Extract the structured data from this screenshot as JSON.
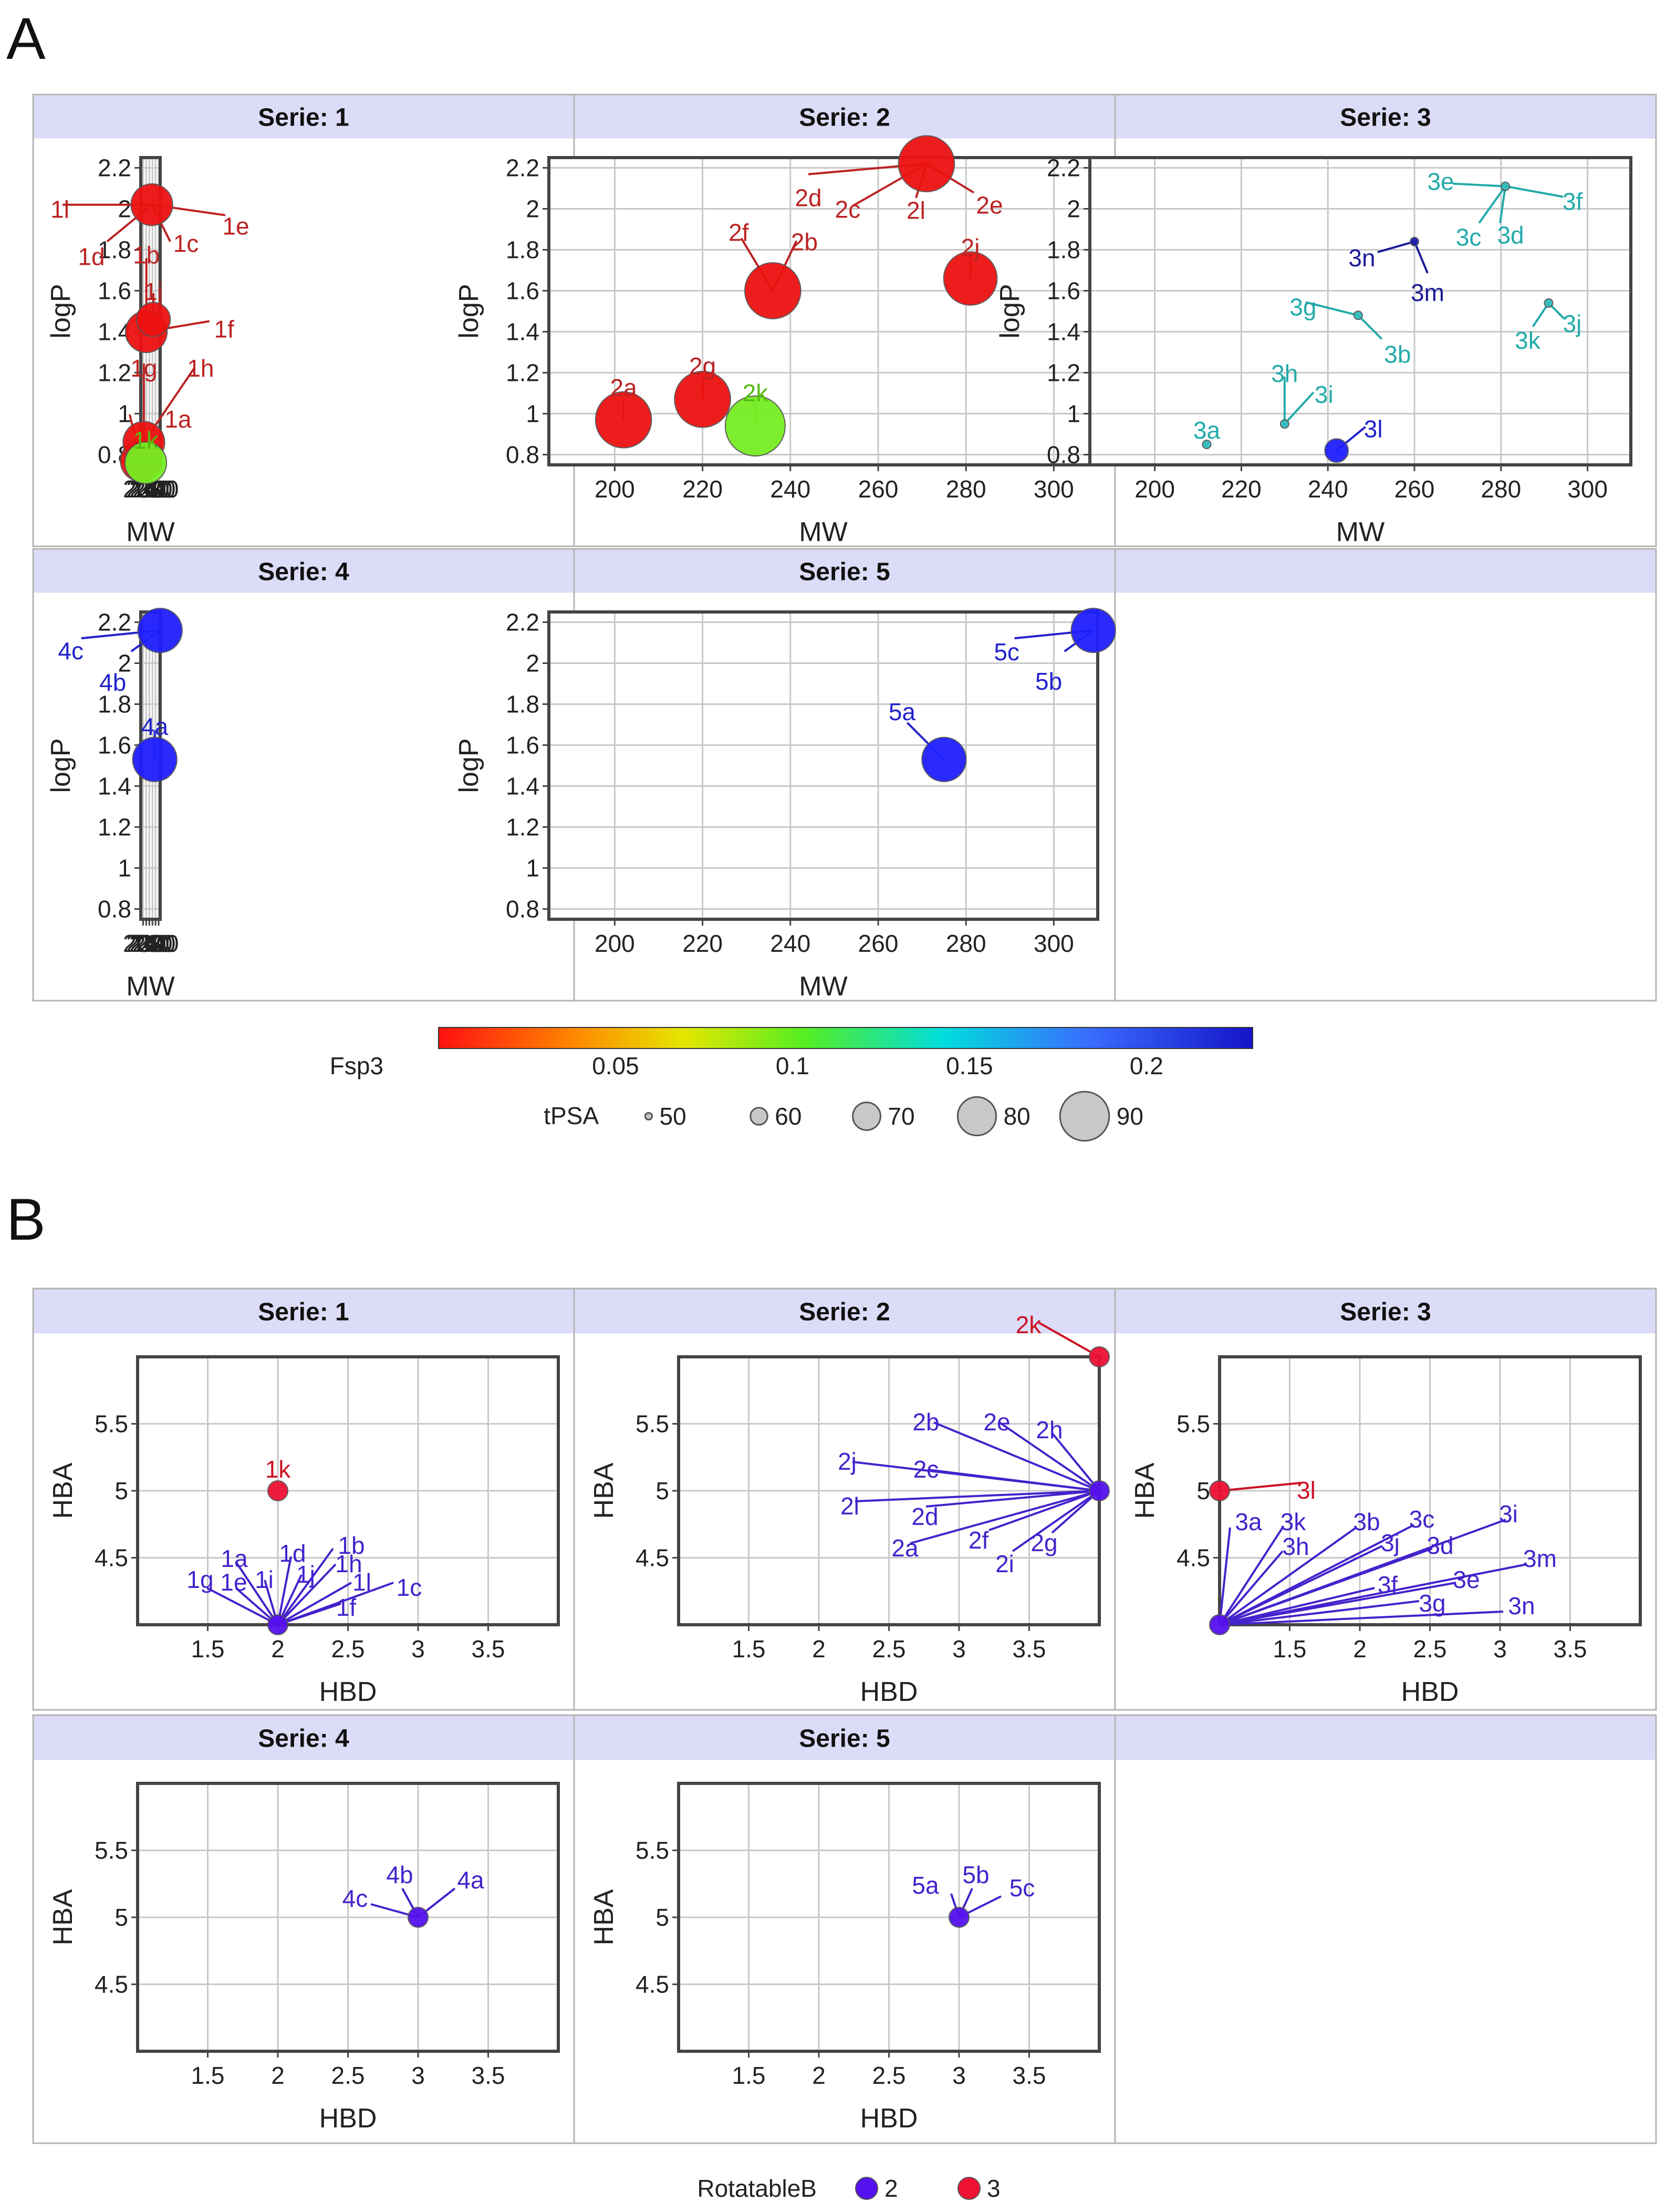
{
  "panel_letters": [
    "A",
    "B"
  ],
  "colors": {
    "strip_bg": "#dcdcf8",
    "frame": "#444444",
    "grid": "#c8c8c8",
    "panel_border": "#b4b4b4",
    "red": "#ee1111",
    "green": "#77ee22",
    "teal": "#33bbbb",
    "navy": "#1a1aaa",
    "blue": "#1f1fff",
    "violet": "#5511ee",
    "crimson": "#ee1133",
    "label_red": "#bb2222",
    "label_green": "#55bb11",
    "label_teal": "#22aaaa",
    "label_navy": "#1a1a99",
    "label_blue": "#2222cc",
    "label_violet": "#4422cc",
    "label_crimson": "#cc1122"
  },
  "chart_data": [
    {
      "id": "A",
      "type": "scatter",
      "xlabel": "MW",
      "ylabel": "logP",
      "xlim": [
        185,
        310
      ],
      "ylim": [
        0.75,
        2.25
      ],
      "xticks": [
        "200",
        "220",
        "240",
        "260",
        "280",
        "300"
      ],
      "yticks": [
        "0.8",
        "1",
        "1.2",
        "1.4",
        "1.6",
        "1.8",
        "2",
        "2.2"
      ],
      "legend": {
        "color_title": "Fsp3",
        "color_ticks": [
          "0.05",
          "0.1",
          "0.15",
          "0.2"
        ],
        "color_range": [
          0,
          0.23
        ],
        "size_title": "tPSA",
        "size_values": [
          "50",
          "60",
          "70",
          "80",
          "90"
        ]
      },
      "panels": [
        {
          "strip": "Serie: 1",
          "points": [
            {
              "label": "1a",
              "x": 188,
              "y": 0.77,
              "tPSA": 76,
              "color": "red"
            },
            {
              "label": "1g",
              "x": 205,
              "y": 0.86,
              "tPSA": 76,
              "color": "red"
            },
            {
              "label": "1h",
              "x": 205,
              "y": 0.86,
              "tPSA": 76,
              "color": "red"
            },
            {
              "label": "1k",
              "x": 217,
              "y": 0.76,
              "tPSA": 76,
              "color": "green"
            },
            {
              "label": "1b",
              "x": 221,
              "y": 1.4,
              "tPSA": 76,
              "color": "red"
            },
            {
              "label": "1f",
              "x": 221,
              "y": 1.4,
              "tPSA": 76,
              "color": "red"
            },
            {
              "label": "1l",
              "x": 256,
              "y": 2.02,
              "tPSA": 76,
              "color": "red"
            },
            {
              "label": "1c",
              "x": 256,
              "y": 2.02,
              "tPSA": 76,
              "color": "red"
            },
            {
              "label": "1d",
              "x": 256,
              "y": 2.02,
              "tPSA": 76,
              "color": "red"
            },
            {
              "label": "1e",
              "x": 256,
              "y": 2.02,
              "tPSA": 76,
              "color": "red"
            },
            {
              "label": "1j",
              "x": 266,
              "y": 1.46,
              "tPSA": 70,
              "color": "red"
            }
          ]
        },
        {
          "strip": "Serie: 2",
          "points": [
            {
              "label": "2a",
              "x": 202,
              "y": 0.97,
              "tPSA": 87,
              "color": "red"
            },
            {
              "label": "2g",
              "x": 220,
              "y": 1.07,
              "tPSA": 87,
              "color": "red"
            },
            {
              "label": "2k",
              "x": 232,
              "y": 0.94,
              "tPSA": 90,
              "color": "green"
            },
            {
              "label": "2f",
              "x": 236,
              "y": 1.6,
              "tPSA": 87,
              "color": "red"
            },
            {
              "label": "2b",
              "x": 236,
              "y": 1.6,
              "tPSA": 87,
              "color": "red"
            },
            {
              "label": "2d",
              "x": 271,
              "y": 2.22,
              "tPSA": 87,
              "color": "red"
            },
            {
              "label": "2c",
              "x": 271,
              "y": 2.22,
              "tPSA": 87,
              "color": "red"
            },
            {
              "label": "2l",
              "x": 271,
              "y": 2.22,
              "tPSA": 87,
              "color": "red"
            },
            {
              "label": "2e",
              "x": 271,
              "y": 2.22,
              "tPSA": 87,
              "color": "red"
            },
            {
              "label": "2j",
              "x": 281,
              "y": 1.66,
              "tPSA": 85,
              "color": "red"
            }
          ]
        },
        {
          "strip": "Serie: 3",
          "points": [
            {
              "label": "3a",
              "x": 212,
              "y": 0.85,
              "tPSA": 48,
              "color": "teal"
            },
            {
              "label": "3h",
              "x": 230,
              "y": 0.95,
              "tPSA": 48,
              "color": "teal"
            },
            {
              "label": "3i",
              "x": 230,
              "y": 0.95,
              "tPSA": 48,
              "color": "teal"
            },
            {
              "label": "3l",
              "x": 242,
              "y": 0.82,
              "tPSA": 62,
              "color": "blue"
            },
            {
              "label": "3g",
              "x": 247,
              "y": 1.48,
              "tPSA": 48,
              "color": "teal"
            },
            {
              "label": "3b",
              "x": 247,
              "y": 1.48,
              "tPSA": 48,
              "color": "teal"
            },
            {
              "label": "3n",
              "x": 260,
              "y": 1.84,
              "tPSA": 48,
              "color": "navy"
            },
            {
              "label": "3m",
              "x": 260,
              "y": 1.84,
              "tPSA": 48,
              "color": "navy"
            },
            {
              "label": "3e",
              "x": 281,
              "y": 2.11,
              "tPSA": 48,
              "color": "teal"
            },
            {
              "label": "3f",
              "x": 281,
              "y": 2.11,
              "tPSA": 48,
              "color": "teal"
            },
            {
              "label": "3c",
              "x": 281,
              "y": 2.11,
              "tPSA": 48,
              "color": "teal"
            },
            {
              "label": "3d",
              "x": 281,
              "y": 2.11,
              "tPSA": 48,
              "color": "teal"
            },
            {
              "label": "3k",
              "x": 291,
              "y": 1.54,
              "tPSA": 48,
              "color": "teal"
            },
            {
              "label": "3j",
              "x": 291,
              "y": 1.54,
              "tPSA": 48,
              "color": "teal"
            }
          ]
        },
        {
          "strip": "Serie: 4",
          "points": [
            {
              "label": "4a",
              "x": 275,
              "y": 1.53,
              "tPSA": 78,
              "color": "blue"
            },
            {
              "label": "4c",
              "x": 309,
              "y": 2.16,
              "tPSA": 78,
              "color": "blue"
            },
            {
              "label": "4b",
              "x": 309,
              "y": 2.16,
              "tPSA": 78,
              "color": "blue"
            }
          ]
        },
        {
          "strip": "Serie: 5",
          "points": [
            {
              "label": "5a",
              "x": 275,
              "y": 1.53,
              "tPSA": 78,
              "color": "blue"
            },
            {
              "label": "5c",
              "x": 309,
              "y": 2.16,
              "tPSA": 78,
              "color": "blue"
            },
            {
              "label": "5b",
              "x": 309,
              "y": 2.16,
              "tPSA": 78,
              "color": "blue"
            }
          ]
        }
      ]
    },
    {
      "id": "B",
      "type": "scatter",
      "xlabel": "HBD",
      "ylabel": "HBA",
      "xlim": [
        1,
        4
      ],
      "ylim": [
        4,
        6
      ],
      "xticks": [
        "1.5",
        "2",
        "2.5",
        "3",
        "3.5"
      ],
      "yticks": [
        "4.5",
        "5",
        "5.5"
      ],
      "legend": {
        "title": "RotatableB",
        "entries": [
          {
            "label": "2",
            "color": "violet"
          },
          {
            "label": "3",
            "color": "crimson"
          }
        ]
      },
      "panels": [
        {
          "strip": "Serie: 1",
          "points": [
            {
              "label": "1k",
              "x": 2,
              "y": 5,
              "color": "crimson"
            },
            {
              "label": "1a",
              "x": 2,
              "y": 4,
              "color": "violet"
            },
            {
              "label": "1g",
              "x": 2,
              "y": 4,
              "color": "violet"
            },
            {
              "label": "1e",
              "x": 2,
              "y": 4,
              "color": "violet"
            },
            {
              "label": "1i",
              "x": 2,
              "y": 4,
              "color": "violet"
            },
            {
              "label": "1d",
              "x": 2,
              "y": 4,
              "color": "violet"
            },
            {
              "label": "1j",
              "x": 2,
              "y": 4,
              "color": "violet"
            },
            {
              "label": "1b",
              "x": 2,
              "y": 4,
              "color": "violet"
            },
            {
              "label": "1h",
              "x": 2,
              "y": 4,
              "color": "violet"
            },
            {
              "label": "1l",
              "x": 2,
              "y": 4,
              "color": "violet"
            },
            {
              "label": "1f",
              "x": 2,
              "y": 4,
              "color": "violet"
            },
            {
              "label": "1c",
              "x": 2,
              "y": 4,
              "color": "violet"
            }
          ]
        },
        {
          "strip": "Serie: 2",
          "points": [
            {
              "label": "2k",
              "x": 4,
              "y": 6,
              "color": "crimson"
            },
            {
              "label": "2b",
              "x": 4,
              "y": 5,
              "color": "violet"
            },
            {
              "label": "2e",
              "x": 4,
              "y": 5,
              "color": "violet"
            },
            {
              "label": "2h",
              "x": 4,
              "y": 5,
              "color": "violet"
            },
            {
              "label": "2j",
              "x": 4,
              "y": 5,
              "color": "violet"
            },
            {
              "label": "2c",
              "x": 4,
              "y": 5,
              "color": "violet"
            },
            {
              "label": "2l",
              "x": 4,
              "y": 5,
              "color": "violet"
            },
            {
              "label": "2d",
              "x": 4,
              "y": 5,
              "color": "violet"
            },
            {
              "label": "2a",
              "x": 4,
              "y": 5,
              "color": "violet"
            },
            {
              "label": "2f",
              "x": 4,
              "y": 5,
              "color": "violet"
            },
            {
              "label": "2i",
              "x": 4,
              "y": 5,
              "color": "violet"
            },
            {
              "label": "2g",
              "x": 4,
              "y": 5,
              "color": "violet"
            }
          ]
        },
        {
          "strip": "Serie: 3",
          "points": [
            {
              "label": "3l",
              "x": 1,
              "y": 5,
              "color": "crimson"
            },
            {
              "label": "3a",
              "x": 1,
              "y": 4,
              "color": "violet"
            },
            {
              "label": "3k",
              "x": 1,
              "y": 4,
              "color": "violet"
            },
            {
              "label": "3h",
              "x": 1,
              "y": 4,
              "color": "violet"
            },
            {
              "label": "3b",
              "x": 1,
              "y": 4,
              "color": "violet"
            },
            {
              "label": "3c",
              "x": 1,
              "y": 4,
              "color": "violet"
            },
            {
              "label": "3j",
              "x": 1,
              "y": 4,
              "color": "violet"
            },
            {
              "label": "3d",
              "x": 1,
              "y": 4,
              "color": "violet"
            },
            {
              "label": "3i",
              "x": 1,
              "y": 4,
              "color": "violet"
            },
            {
              "label": "3m",
              "x": 1,
              "y": 4,
              "color": "violet"
            },
            {
              "label": "3f",
              "x": 1,
              "y": 4,
              "color": "violet"
            },
            {
              "label": "3e",
              "x": 1,
              "y": 4,
              "color": "violet"
            },
            {
              "label": "3g",
              "x": 1,
              "y": 4,
              "color": "violet"
            },
            {
              "label": "3n",
              "x": 1,
              "y": 4,
              "color": "violet"
            }
          ]
        },
        {
          "strip": "Serie: 4",
          "points": [
            {
              "label": "4c",
              "x": 3,
              "y": 5,
              "color": "violet"
            },
            {
              "label": "4b",
              "x": 3,
              "y": 5,
              "color": "violet"
            },
            {
              "label": "4a",
              "x": 3,
              "y": 5,
              "color": "violet"
            }
          ]
        },
        {
          "strip": "Serie: 5",
          "points": [
            {
              "label": "5a",
              "x": 3,
              "y": 5,
              "color": "violet"
            },
            {
              "label": "5b",
              "x": 3,
              "y": 5,
              "color": "violet"
            },
            {
              "label": "5c",
              "x": 3,
              "y": 5,
              "color": "violet"
            }
          ]
        }
      ]
    }
  ]
}
